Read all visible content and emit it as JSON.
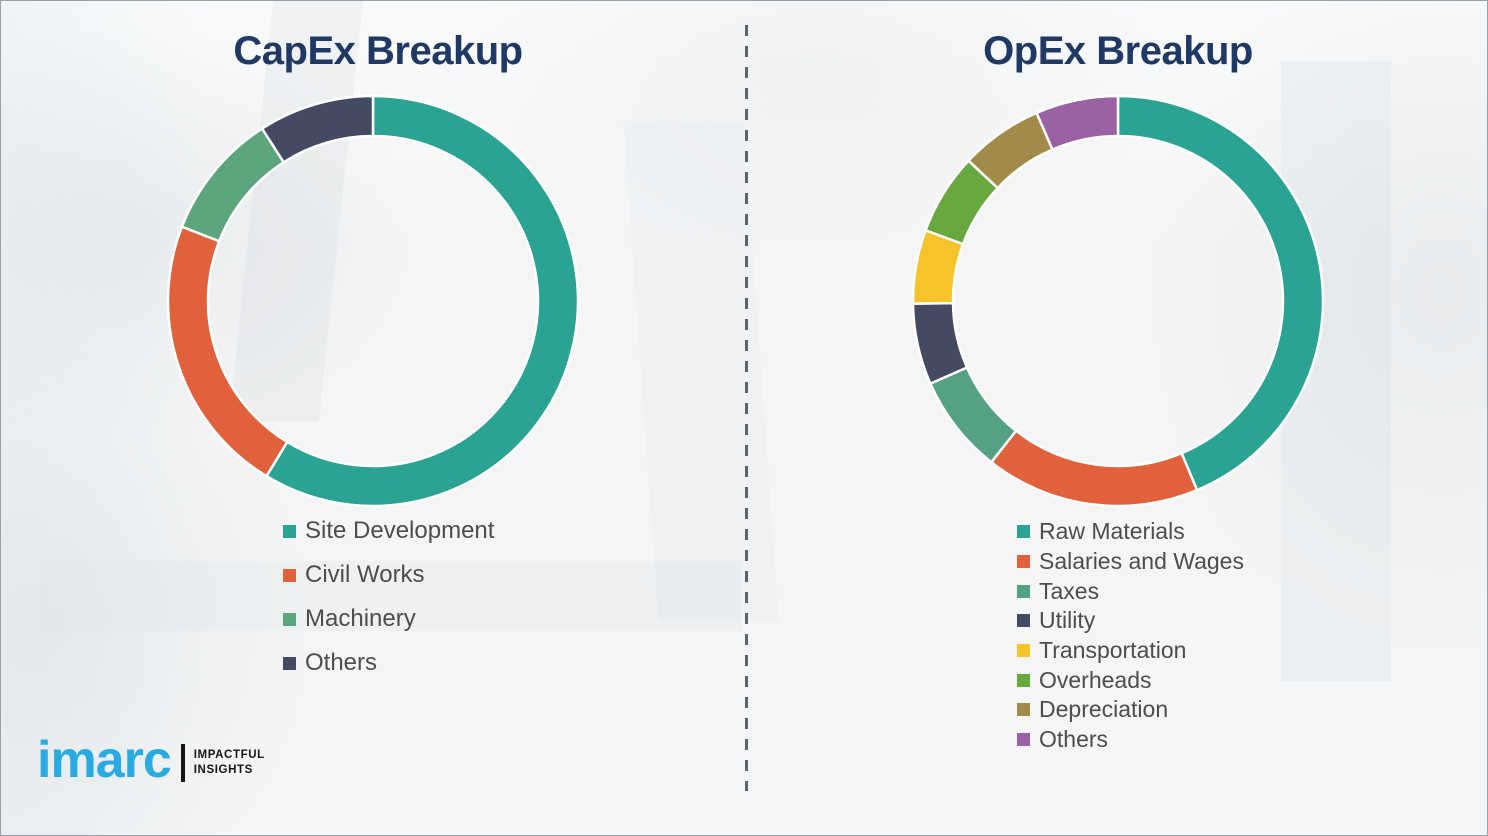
{
  "page": {
    "background_color": "#f4f5f6",
    "border_color": "#9aa0a5",
    "divider": "vertical dashed line between panels",
    "divider_color": "#5f6368",
    "title_color": "#1f3864",
    "legend_text_color": "#4d4d4d"
  },
  "chart_data": [
    {
      "type": "pie",
      "subtype": "donut",
      "title": "CapEx Breakup",
      "labels": [
        "Site Development",
        "Civil Works",
        "Machinery",
        "Others"
      ],
      "values": [
        58.7,
        22.2,
        10.0,
        9.1
      ],
      "values_unit": "percent_estimated_from_arc_angles",
      "colors": [
        "#2ba392",
        "#e0613c",
        "#5ca57d",
        "#454a63"
      ],
      "start_angle_deg": 0,
      "direction": "clockwise",
      "legend_position": "below-left",
      "data_labels_shown": false
    },
    {
      "type": "pie",
      "subtype": "donut",
      "title": "OpEx Breakup",
      "labels": [
        "Raw Materials",
        "Salaries and Wages",
        "Taxes",
        "Utility",
        "Transportation",
        "Overheads",
        "Depreciation",
        "Others"
      ],
      "values": [
        43.7,
        16.9,
        7.8,
        6.4,
        5.8,
        6.4,
        6.5,
        6.5
      ],
      "values_unit": "percent_estimated_from_arc_angles",
      "colors": [
        "#2ba392",
        "#e0613c",
        "#55a183",
        "#454a63",
        "#f6c32b",
        "#67a93f",
        "#a28b49",
        "#9c60a5"
      ],
      "start_angle_deg": 0,
      "direction": "clockwise",
      "legend_position": "below-left",
      "data_labels_shown": false
    }
  ],
  "branding": {
    "logo_text": "imarc",
    "logo_color": "#29abe2",
    "tagline_line1": "IMPACTFUL",
    "tagline_line2": "INSIGHTS",
    "tagline_color": "#161616"
  }
}
